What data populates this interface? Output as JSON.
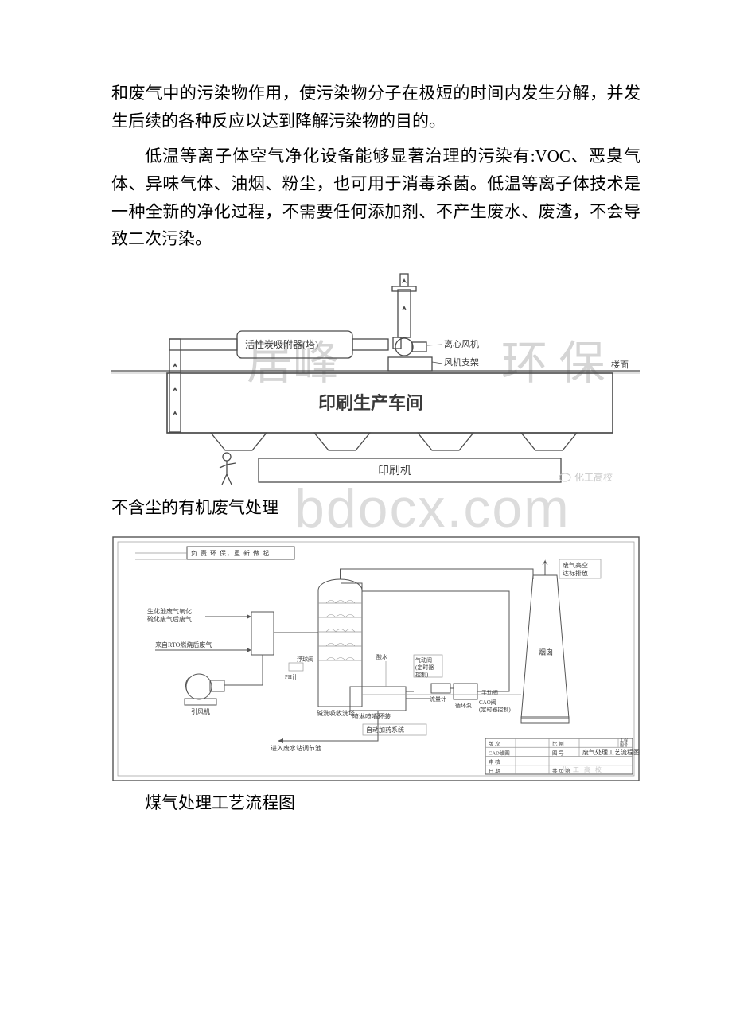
{
  "paragraphs": {
    "p1": "和废气中的污染物作用，使污染物分子在极短的时间内发生分解，并发生后续的各种反应以达到降解污染物的目的。",
    "p2": "低温等离子体空气净化设备能够显著治理的污染有:VOC、恶臭气体、异味气体、油烟、粉尘，也可用于消毒杀菌。低温等离子体技术是一种全新的净化过程，不需要任何添加剂、不产生废水、废渣，不会导致二次污染。"
  },
  "figure1": {
    "watermark_left": "居峰",
    "watermark_right": "环 保",
    "corner_mark": "化工高校",
    "labels": {
      "adsorber": "活性炭吸附器(塔)",
      "fan": "离心风机",
      "bracket": "风机支架",
      "roof": "楼面",
      "workshop": "印刷生产车间",
      "machine": "印刷机"
    },
    "colors": {
      "stroke": "#4a4a4a",
      "text": "#3a3a3a",
      "light": "#888888",
      "wm": "#d5d5d5",
      "corner": "#c8c8c8"
    }
  },
  "caption1": "不含尘的有机废气处理",
  "watermark_url": "bdocx.com",
  "figure2": {
    "corner_mark": "化 工 高 校",
    "labels": {
      "top_box": "负 责 环 保，重 新 做 起",
      "top_right": "废气高空达标排放",
      "left1": "生化池废气氧化硫化废气后废气",
      "left2": "来自RTO燃烧后废气",
      "fan": "引风机",
      "ph": "PH计",
      "sup_water": "酸水",
      "tank": "浮球阀",
      "wash": "碱洗吸收洗塔",
      "spray": "喷淋喷嘴环装",
      "auto_dose": "自动加药系统",
      "valve1": "气动阀\n(定时器\n控制)",
      "flow": "流量计",
      "hand": "手动阀",
      "pump": "CAO阀\n(定时器控制)",
      "cycle": "循环泵",
      "drain": "进入废水站调节池",
      "stack": "烟囱",
      "title_block_title": "废气处理工艺流程图",
      "tb_l1": "版 次",
      "tb_l2": "CAD绘图",
      "tb_l3": "审 核",
      "tb_l4": "日 期",
      "tb_r1": "比 例",
      "tb_r2": "工程号",
      "tb_r3": "图 号",
      "tb_r4": "共 页  第"
    },
    "colors": {
      "stroke": "#555555",
      "border": "#4a4a4a",
      "text": "#3a3a3a",
      "light": "#999999",
      "blue": "#5a7aa0",
      "corner": "#c8c8c8"
    }
  },
  "caption2": "煤气处理工艺流程图"
}
